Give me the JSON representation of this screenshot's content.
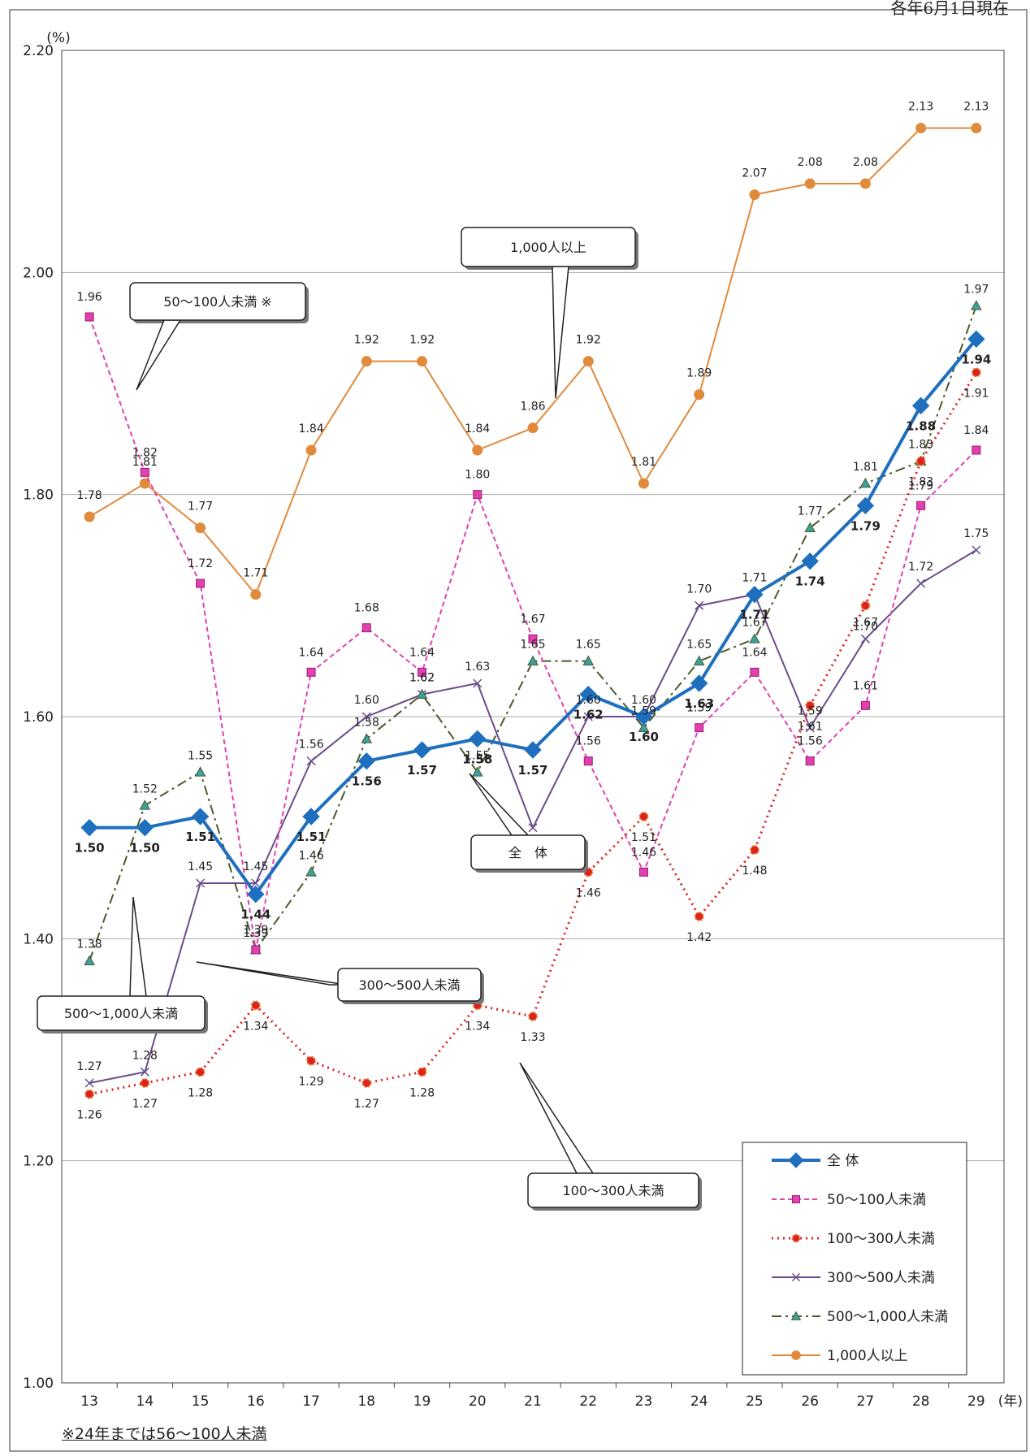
{
  "header_note": "各年6月1日現在",
  "footnote": "※24年までは56〜100人未満",
  "callouts": {
    "large": "1,000人以上",
    "small": "50〜100人未満 ※",
    "total": "全　体",
    "mid300": "300〜500人未満",
    "mid500": "500〜1,000人未満",
    "mid100": "100〜300人未満"
  },
  "chart_data": {
    "type": "line",
    "ylabel": "(%)",
    "xlabel": "(年)",
    "ylim": [
      1.0,
      2.2
    ],
    "yticks": [
      "1.00",
      "1.20",
      "1.40",
      "1.60",
      "1.80",
      "2.00",
      "2.20"
    ],
    "categories": [
      "13",
      "14",
      "15",
      "16",
      "17",
      "18",
      "19",
      "20",
      "21",
      "22",
      "23",
      "24",
      "25",
      "26",
      "27",
      "28",
      "29"
    ],
    "grid": "horizontal",
    "legend_position": "bottom-right",
    "series": [
      {
        "name": "全 体",
        "color": "#1f6fbf",
        "values": [
          1.5,
          1.5,
          1.51,
          1.44,
          1.51,
          1.56,
          1.57,
          1.58,
          1.57,
          1.62,
          1.6,
          1.63,
          1.71,
          1.74,
          1.79,
          1.88,
          1.94
        ],
        "labels": [
          "1.50",
          "1.50",
          "1.51",
          "1.44",
          "1.51",
          "1.56",
          "1.57",
          "1.58",
          "1.57",
          "1.62",
          "1.60",
          "1.63",
          "1.71",
          "1.74",
          "1.79",
          "1.88",
          "1.94"
        ]
      },
      {
        "name": "50〜100人未満",
        "color": "#e040b0",
        "values": [
          1.96,
          1.82,
          1.72,
          1.39,
          1.64,
          1.68,
          1.64,
          1.8,
          1.67,
          1.56,
          1.46,
          1.59,
          1.64,
          1.56,
          1.61,
          1.79,
          1.84
        ],
        "labels": [
          "1.96",
          "1.82",
          "1.72",
          "1.39",
          "1.64",
          "1.68",
          "1.64",
          "1.80",
          "1.67",
          "1.56",
          "1.46",
          "1.59",
          "1.64",
          "1.56",
          "1.61",
          "1.79",
          "1.84"
        ]
      },
      {
        "name": "100〜300人未満",
        "color": "#e02020",
        "values": [
          1.26,
          1.27,
          1.28,
          1.34,
          1.29,
          1.27,
          1.28,
          1.34,
          1.33,
          1.46,
          1.51,
          1.42,
          1.48,
          1.61,
          1.7,
          1.83,
          1.91
        ],
        "labels": [
          "1.26",
          "1.27",
          "1.28",
          "1.34",
          "1.29",
          "1.27",
          "1.28",
          "1.34",
          "1.33",
          "1.46",
          "1.51",
          "1.42",
          "1.48",
          "1.61",
          "1.70",
          "1.83",
          "1.91"
        ]
      },
      {
        "name": "300〜500人未満",
        "color": "#6a4c8c",
        "values": [
          1.27,
          1.28,
          1.45,
          1.45,
          1.56,
          1.6,
          1.62,
          1.63,
          1.5,
          1.6,
          1.6,
          1.7,
          1.71,
          1.59,
          1.67,
          1.72,
          1.75
        ],
        "labels": [
          "1.27",
          "1.28",
          "1.45",
          "1.45",
          "1.56",
          "1.60",
          "1.62",
          "1.63",
          "",
          "1.60",
          "1.60",
          "1.70",
          "1.71",
          "1.59",
          "1.67",
          "1.72",
          "1.75"
        ]
      },
      {
        "name": "500〜1,000人未満",
        "color": "#4a5a2a",
        "values": [
          1.38,
          1.52,
          1.55,
          1.39,
          1.46,
          1.58,
          1.62,
          1.55,
          1.65,
          1.65,
          1.59,
          1.65,
          1.67,
          1.77,
          1.81,
          1.83,
          1.97
        ],
        "labels": [
          "1.38",
          "1.52",
          "1.55",
          "1.39",
          "1.46",
          "1.58",
          "1.62",
          "1.55",
          "1.65",
          "1.65",
          "1.59",
          "1.65",
          "1.67",
          "1.77",
          "1.81",
          "1.83",
          "1.97"
        ]
      },
      {
        "name": "1,000人以上",
        "color": "#e08a3c",
        "values": [
          1.78,
          1.81,
          1.77,
          1.71,
          1.84,
          1.92,
          1.92,
          1.84,
          1.86,
          1.92,
          1.81,
          1.89,
          2.07,
          2.08,
          2.08,
          2.13,
          2.13
        ],
        "labels": [
          "1.78",
          "1.81",
          "1.77",
          "1.71",
          "1.84",
          "1.92",
          "1.92",
          "1.84",
          "1.86",
          "1.92",
          "1.81",
          "1.89",
          "2.07",
          "2.08",
          "2.08",
          "2.13",
          "2.13"
        ]
      }
    ]
  }
}
